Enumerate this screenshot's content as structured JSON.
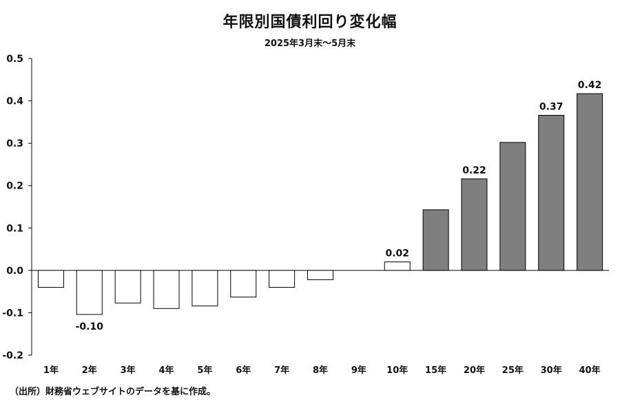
{
  "chart_data": {
    "type": "bar",
    "title": "年限別国債利回り変化幅",
    "subtitle": "2025年3月末～5月末",
    "categories": [
      "1年",
      "2年",
      "3年",
      "4年",
      "5年",
      "6年",
      "7年",
      "8年",
      "9年",
      "10年",
      "15年",
      "20年",
      "25年",
      "30年",
      "40年"
    ],
    "values": [
      -0.04,
      -0.104,
      -0.077,
      -0.09,
      -0.084,
      -0.063,
      -0.04,
      -0.022,
      0.0,
      0.02,
      0.143,
      0.216,
      0.302,
      0.366,
      0.417
    ],
    "data_labels": [
      "",
      "-0.10",
      "",
      "",
      "",
      "",
      "",
      "",
      "",
      "0.02",
      "",
      "0.22",
      "",
      "0.37",
      "0.42"
    ],
    "bar_styles": [
      "white",
      "white",
      "white",
      "white",
      "white",
      "white",
      "white",
      "white",
      "white",
      "white",
      "gray",
      "gray",
      "gray",
      "gray",
      "gray"
    ],
    "colors": {
      "white": "#ffffff",
      "gray": "#7f7f7f",
      "outline": "#000000"
    },
    "yticks": [
      "0.5",
      "0.4",
      "0.3",
      "0.2",
      "0.1",
      "0.0",
      "-0.1",
      "-0.2"
    ],
    "ylim": [
      -0.2,
      0.5
    ],
    "grid": false,
    "xlabel": "",
    "ylabel": ""
  },
  "source_note": "（出所）財務省ウェブサイトのデータを基に作成。"
}
